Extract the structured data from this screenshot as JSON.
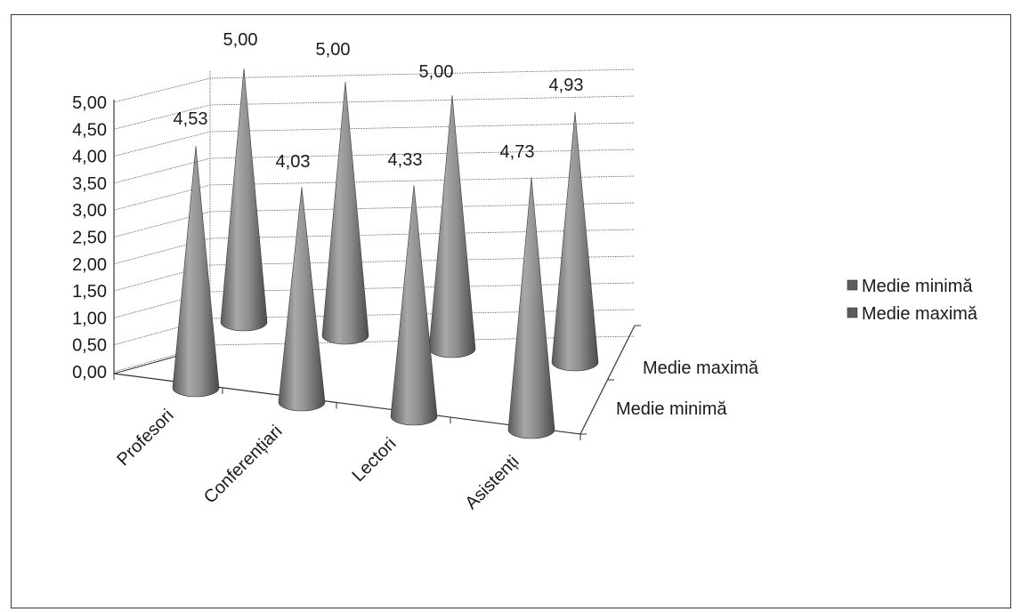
{
  "chart_data": {
    "type": "bar",
    "shape": "cone-3d",
    "categories": [
      "Profesori",
      "Conferențiari",
      "Lectori",
      "Asistenți"
    ],
    "series": [
      {
        "name": "Medie minimă",
        "values": [
          4.53,
          4.03,
          4.33,
          4.73
        ]
      },
      {
        "name": "Medie maximă",
        "values": [
          5.0,
          5.0,
          5.0,
          4.93
        ]
      }
    ],
    "y_ticks": [
      "0,00",
      "0,50",
      "1,00",
      "1,50",
      "2,00",
      "2,50",
      "3,00",
      "3,50",
      "4,00",
      "4,50",
      "5,00"
    ],
    "data_labels": [
      [
        "4,53",
        "4,03",
        "4,33",
        "4,73"
      ],
      [
        "5,00",
        "5,00",
        "5,00",
        "4,93"
      ]
    ],
    "depth_axis_labels": [
      "Medie minimă",
      "Medie maximă"
    ],
    "ylim": [
      0,
      5
    ],
    "grid": true,
    "legend_position": "right",
    "colors": {
      "cone": "#8a8a8a",
      "cone_dark": "#4a4a4a",
      "cone_light": "#c8c8c8",
      "grid": "#5a5a5a"
    }
  }
}
